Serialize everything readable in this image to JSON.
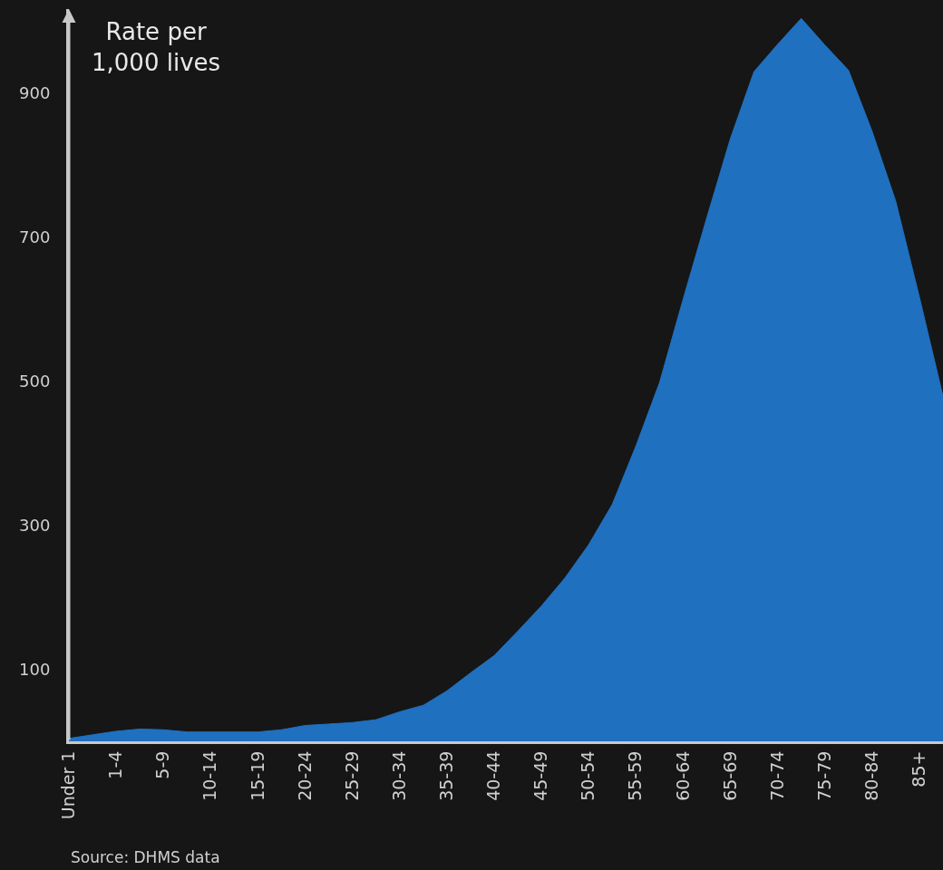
{
  "chart_data": {
    "type": "area",
    "ylabel": "Rate per\n1,000 lives",
    "annotations": [
      "Source: DHMS data"
    ],
    "categories": [
      "Under 1",
      null,
      "1-4",
      null,
      "5-9",
      null,
      "10-14",
      null,
      "15-19",
      null,
      "20-24",
      null,
      "25-29",
      null,
      "30-34",
      null,
      "35-39",
      null,
      "40-44",
      null,
      "45-49",
      null,
      "50-54",
      null,
      "55-59",
      null,
      "60-64",
      null,
      "65-69",
      null,
      "70-74",
      null,
      "75-79",
      null,
      "80-84",
      null,
      "85+",
      null
    ],
    "series": [
      {
        "color": "#2070c0",
        "values": [
          4,
          9,
          14,
          17,
          16,
          13,
          13,
          13,
          13,
          16,
          22,
          24,
          26,
          30,
          41,
          50,
          70,
          95,
          119,
          153,
          188,
          227,
          273,
          329,
          410,
          498,
          614,
          727,
          837,
          930,
          968,
          1004,
          967,
          932,
          847,
          750,
          617,
          479
        ]
      }
    ],
    "ylim": [
      0,
      1017
    ],
    "yticks": [
      100,
      300,
      500,
      700,
      900
    ]
  }
}
